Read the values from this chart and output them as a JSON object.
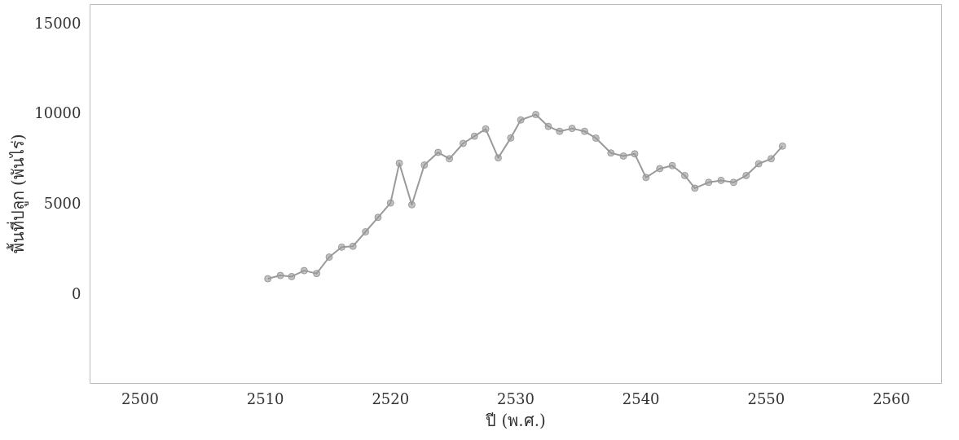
{
  "chart_data": {
    "type": "line",
    "xlabel": "ปี (พ.ศ.)",
    "ylabel": "พื้นที่ปลูก (พันไร่)",
    "x": [
      2510.2,
      2511.2,
      2512.1,
      2513.1,
      2514.1,
      2515.1,
      2516.1,
      2517.0,
      2518.0,
      2519.0,
      2520.0,
      2520.7,
      2521.7,
      2522.7,
      2523.8,
      2524.7,
      2525.8,
      2526.7,
      2527.6,
      2528.6,
      2529.6,
      2530.4,
      2531.6,
      2532.6,
      2533.5,
      2534.5,
      2535.5,
      2536.4,
      2537.6,
      2538.6,
      2539.5,
      2540.4,
      2541.5,
      2542.5,
      2543.5,
      2544.3,
      2545.4,
      2546.4,
      2547.4,
      2548.4,
      2549.4,
      2550.4,
      2551.3
    ],
    "series": [
      {
        "color": "#9a9a9a",
        "values": [
          800,
          980,
          920,
          1250,
          1090,
          2000,
          2550,
          2600,
          3400,
          4200,
          5000,
          7200,
          4900,
          7100,
          7800,
          7450,
          8300,
          8700,
          9100,
          7500,
          8600,
          9600,
          9900,
          9240,
          8970,
          9130,
          8970,
          8590,
          7770,
          7600,
          7720,
          6410,
          6900,
          7070,
          6520,
          5820,
          6140,
          6250,
          6140,
          6520,
          7170,
          7450,
          8150
        ]
      }
    ],
    "xlim": [
      2496,
      2564
    ],
    "ylim": [
      -5000,
      16000
    ],
    "xticks": [
      2500,
      2510,
      2520,
      2530,
      2540,
      2550,
      2560
    ],
    "yticks": [
      0,
      5000,
      10000,
      15000
    ],
    "grid": false,
    "marker": "circle",
    "line_style": "solid"
  }
}
